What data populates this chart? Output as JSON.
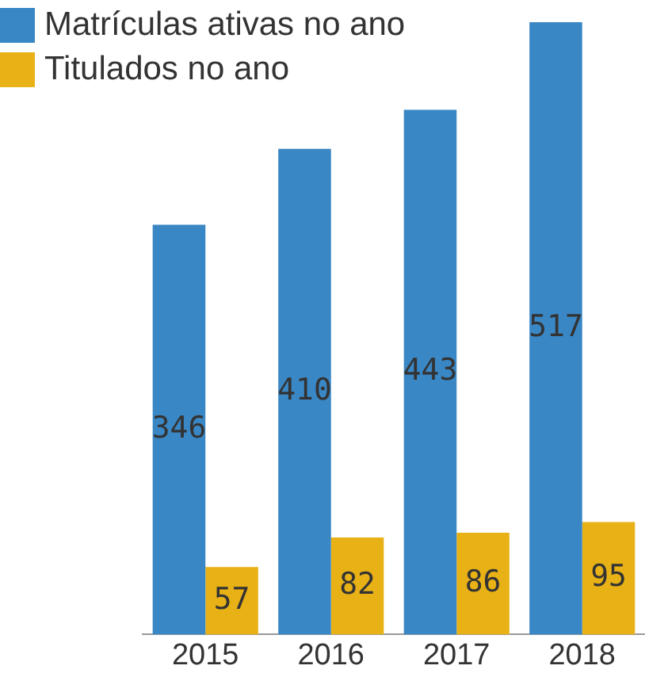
{
  "chart_data": {
    "type": "bar",
    "categories": [
      "2015",
      "2016",
      "2017",
      "2018"
    ],
    "series": [
      {
        "name": "Matrículas ativas no ano",
        "color": "#3a87c5",
        "values": [
          346,
          410,
          443,
          517
        ]
      },
      {
        "name": "Titulados no ano",
        "color": "#e8b116",
        "values": [
          57,
          82,
          86,
          95
        ]
      }
    ],
    "data_labels": true,
    "legend": "top left",
    "grid": false,
    "tick_labels": "x"
  }
}
